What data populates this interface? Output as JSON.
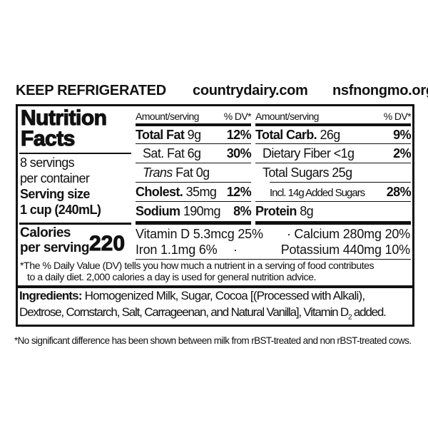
{
  "header": {
    "storage": "KEEP REFRIGERATED",
    "website": "countrydairy.com",
    "certification_site": "nsfnongmo.org"
  },
  "panel": {
    "title_line1": "Nutrition",
    "title_line2": "Facts",
    "servings_line1": "8 servings",
    "servings_line2": "per container",
    "serving_size_label": "Serving size",
    "serving_size_value": "1 cup (240mL)",
    "calories_label_line1": "Calories",
    "calories_label_line2": "per serving",
    "calories_value": "220",
    "left_column": {
      "header_amount": "Amount/serving",
      "header_dv": "% DV*",
      "rows": [
        {
          "label": "Total Fat",
          "amount": "9g",
          "dv": "12%",
          "bold": true
        },
        {
          "label": "Sat. Fat",
          "amount": "6g",
          "dv": "30%",
          "bold": false
        },
        {
          "label": "Trans",
          "label_suffix": "Fat 0g",
          "amount": "",
          "dv": "",
          "bold": false
        },
        {
          "label": "Cholest.",
          "amount": "35mg",
          "dv": "12%",
          "bold": true
        },
        {
          "label": "Sodium",
          "amount": "190mg",
          "dv": "8%",
          "bold": true
        }
      ]
    },
    "right_column": {
      "header_amount": "Amount/serving",
      "header_dv": "% DV*",
      "rows": [
        {
          "label": "Total Carb.",
          "amount": "26g",
          "dv": "9%",
          "bold": true
        },
        {
          "label": "Dietary Fiber",
          "amount": "<1g",
          "dv": "2%",
          "bold": false
        },
        {
          "label": "Total Sugars",
          "amount": "25g",
          "dv": "",
          "bold": false
        },
        {
          "label": "Incl. 14g Added Sugars",
          "amount": "",
          "dv": "28%",
          "bold": false
        },
        {
          "label": "Protein",
          "amount": "8g",
          "dv": "",
          "bold": true
        }
      ]
    },
    "micronutrients": {
      "line1_left": "Vitamin D 5.3mcg 25%",
      "line1_right": "Calcium 280mg 20%",
      "line2_left": "Iron 1.1mg 6%",
      "line2_right": "Potassium 440mg 10%",
      "separator": "·"
    },
    "footnote_line1": "*The % Daily Value (DV) tells you how much a nutrient in a serving of food contributes",
    "footnote_line2": "to a daily diet. 2,000 calories a day is used for general nutrition advice.",
    "ingredients_label": "Ingredients:",
    "ingredients_line1": "Homogenized Milk, Sugar, Cocoa [(Processed with Alkali),",
    "ingredients_line2": "Dextrose, Cornstarch, Salt, Carrageenan, and Natural Vanilla], Vitamin D",
    "ingredients_subscript": "2",
    "ingredients_end": " added."
  },
  "bottom_note": "*No significant difference has been shown between milk from rBST-treated and non rBST-treated cows."
}
